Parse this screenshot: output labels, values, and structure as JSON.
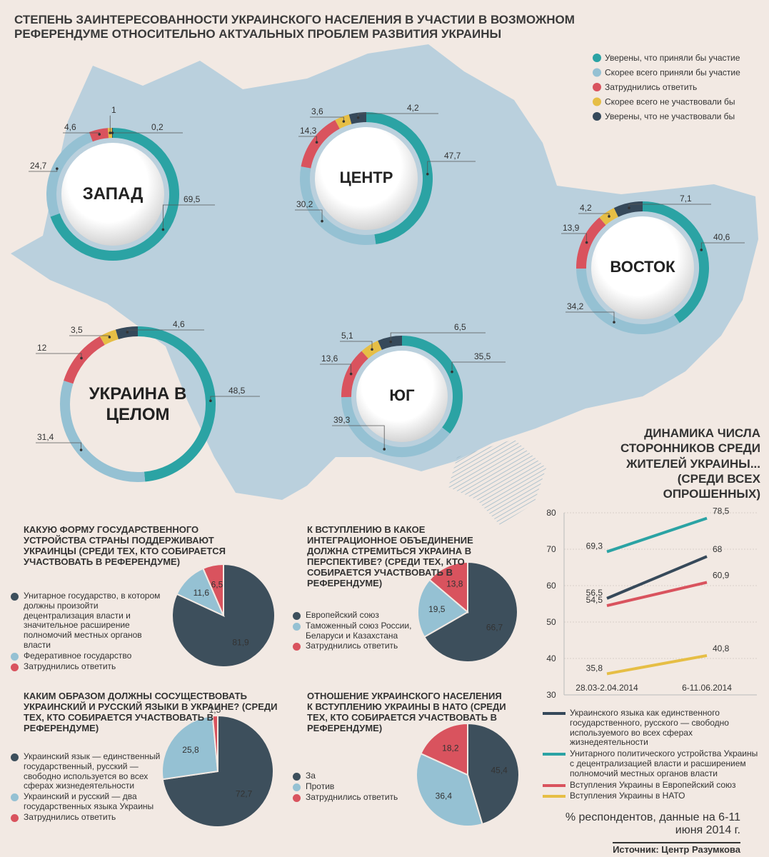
{
  "title": "СТЕПЕНЬ ЗАИНТЕРЕСОВАННОСТИ УКРАИНСКОГО НАСЕЛЕНИЯ  В УЧАСТИИ В ВОЗМОЖНОМ РЕФЕРЕНДУМЕ ОТНОСИТЕЛЬНО АКТУАЛЬНЫХ ПРОБЛЕМ РАЗВИТИЯ УКРАИНЫ",
  "donut_legend": {
    "names": [
      "Уверены, что приняли бы участие",
      "Скорее всего приняли бы участие",
      "Затруднились ответить",
      "Скорее всего не участвовали бы",
      "Уверены, что не участвовали бы"
    ],
    "colors": [
      "#2ba3a4",
      "#95c1d3",
      "#d9535e",
      "#e6be45",
      "#36495a"
    ]
  },
  "chart_data": [
    {
      "type": "donut",
      "label": "ЗАПАД",
      "values": [
        69.5,
        24.7,
        4.6,
        1,
        0.2
      ],
      "value_labels": [
        "69,5",
        "24,7",
        "4,6",
        "1",
        "0,2"
      ]
    },
    {
      "type": "donut",
      "label": "ЦЕНТР",
      "values": [
        47.7,
        30.2,
        14.3,
        3.6,
        4.2
      ],
      "value_labels": [
        "47,7",
        "30,2",
        "14,3",
        "3,6",
        "4,2"
      ]
    },
    {
      "type": "donut",
      "label": "ВОСТОК",
      "values": [
        40.6,
        34.2,
        13.9,
        4.2,
        7.1
      ],
      "value_labels": [
        "40,6",
        "34,2",
        "13,9",
        "4,2",
        "7,1"
      ]
    },
    {
      "type": "donut",
      "label": "УКРАИНА В ЦЕЛОМ",
      "values": [
        48.5,
        31.4,
        12,
        3.5,
        4.6
      ],
      "value_labels": [
        "48,5",
        "31,4",
        "12",
        "3,5",
        "4,6"
      ]
    },
    {
      "type": "donut",
      "label": "ЮГ",
      "values": [
        35.5,
        39.3,
        13.6,
        5.1,
        6.5
      ],
      "value_labels": [
        "35,5",
        "39,3",
        "13,6",
        "5,1",
        "6,5"
      ]
    },
    {
      "type": "pie",
      "title": "КАКУЮ ФОРМУ ГОСУДАРСТВЕННОГО УСТРОЙСТВА СТРАНЫ ПОДДЕРЖИВАЮТ УКРАИНЦЫ (СРЕДИ ТЕХ, КТО СОБИРАЕТСЯ УЧАСТВОВАТЬ В РЕФЕРЕНДУМЕ)",
      "categories": [
        "Унитарное государство, в котором должны произойти децентрализация власти и значительное расширение полномочий местных органов власти",
        "Федеративное государство",
        "Затруднились ответить"
      ],
      "values": [
        81.9,
        11.6,
        6.5
      ],
      "value_labels": [
        "81,9",
        "11,6",
        "6,5"
      ],
      "colors": [
        "#3d4f5c",
        "#95c1d3",
        "#d9535e"
      ]
    },
    {
      "type": "pie",
      "title": "К ВСТУПЛЕНИЮ В КАКОЕ ИНТЕГРАЦИОННОЕ ОБЪЕДИНЕНИЕ ДОЛЖНА СТРЕМИТЬСЯ УКРАИНА В ПЕРСПЕКТИВЕ? (СРЕДИ ТЕХ, КТО СОБИРАЕТСЯ УЧАСТВОВАТЬ В РЕФЕРЕНДУМЕ)",
      "categories": [
        "Европейский союз",
        "Таможенный союз России, Беларуси и Казахстана",
        "Затруднились ответить"
      ],
      "values": [
        66.7,
        19.5,
        13.8
      ],
      "value_labels": [
        "66,7",
        "19,5",
        "13,8"
      ],
      "colors": [
        "#3d4f5c",
        "#95c1d3",
        "#d9535e"
      ]
    },
    {
      "type": "pie",
      "title": "КАКИМ ОБРАЗОМ ДОЛЖНЫ СОСУЩЕСТВОВАТЬ УКРАИНСКИЙ И РУССКИЙ ЯЗЫКИ В УКРАИНЕ? (СРЕДИ ТЕХ, КТО СОБИРАЕТСЯ УЧАСТВОВАТЬ В РЕФЕРЕНДУМЕ)",
      "categories": [
        "Украинский язык — единственный государственный, русский — свободно используется во всех сферах жизнедеятельности",
        "Украинский и русский — два государственных языка Украины",
        "Затруднились ответить"
      ],
      "values": [
        72.7,
        25.8,
        1.5
      ],
      "value_labels": [
        "72,7",
        "25,8",
        "1,5"
      ],
      "colors": [
        "#3d4f5c",
        "#95c1d3",
        "#d9535e"
      ]
    },
    {
      "type": "pie",
      "title": "ОТНОШЕНИЕ УКРАИНСКОГО НАСЕЛЕНИЯ К ВСТУПЛЕНИЮ УКРАИНЫ В НАТО (СРЕДИ ТЕХ, КТО СОБИРАЕТСЯ УЧАСТВОВАТЬ В РЕФЕРЕНДУМЕ)",
      "categories": [
        "За",
        "Против",
        "Затруднились ответить"
      ],
      "values": [
        45.4,
        36.4,
        18.2
      ],
      "value_labels": [
        "45,4",
        "36,4",
        "18,2"
      ],
      "colors": [
        "#3d4f5c",
        "#95c1d3",
        "#d9535e"
      ]
    },
    {
      "type": "line",
      "title": "ДИНАМИКА ЧИСЛА СТОРОННИКОВ СРЕДИ ЖИТЕЛЕЙ УКРАИНЫ... (СРЕДИ ВСЕХ ОПРОШЕННЫХ)",
      "categories": [
        "28.03-2.04.2014",
        "6-11.06.2014"
      ],
      "ylim": [
        30,
        80
      ],
      "yticks": [
        30,
        40,
        50,
        60,
        70,
        80
      ],
      "grid": true,
      "series": [
        {
          "name": "Украинского языка как единственного государственного, русского — свободно используемого во всех сферах жизнедеятельности",
          "color": "#36495a",
          "values": [
            56.5,
            68
          ],
          "value_labels": [
            "56,5",
            "68"
          ]
        },
        {
          "name": "Унитарного политического устройства Украины с децентрализацией власти и расширением полномочий местных органов власти",
          "color": "#2ba3a4",
          "values": [
            69.3,
            78.5
          ],
          "value_labels": [
            "69,3",
            "78,5"
          ]
        },
        {
          "name": "Вступления Украины в Европейский союз",
          "color": "#d9535e",
          "values": [
            54.5,
            60.9
          ],
          "value_labels": [
            "54,5",
            "60,9"
          ]
        },
        {
          "name": "Вступления Украины в НАТО",
          "color": "#e6be45",
          "values": [
            35.8,
            40.8
          ],
          "value_labels": [
            "35,8",
            "40,8"
          ]
        }
      ]
    }
  ],
  "note": "% респондентов, данные на 6-11 июня 2014 г.",
  "source": "Источник: Центр Разумкова"
}
